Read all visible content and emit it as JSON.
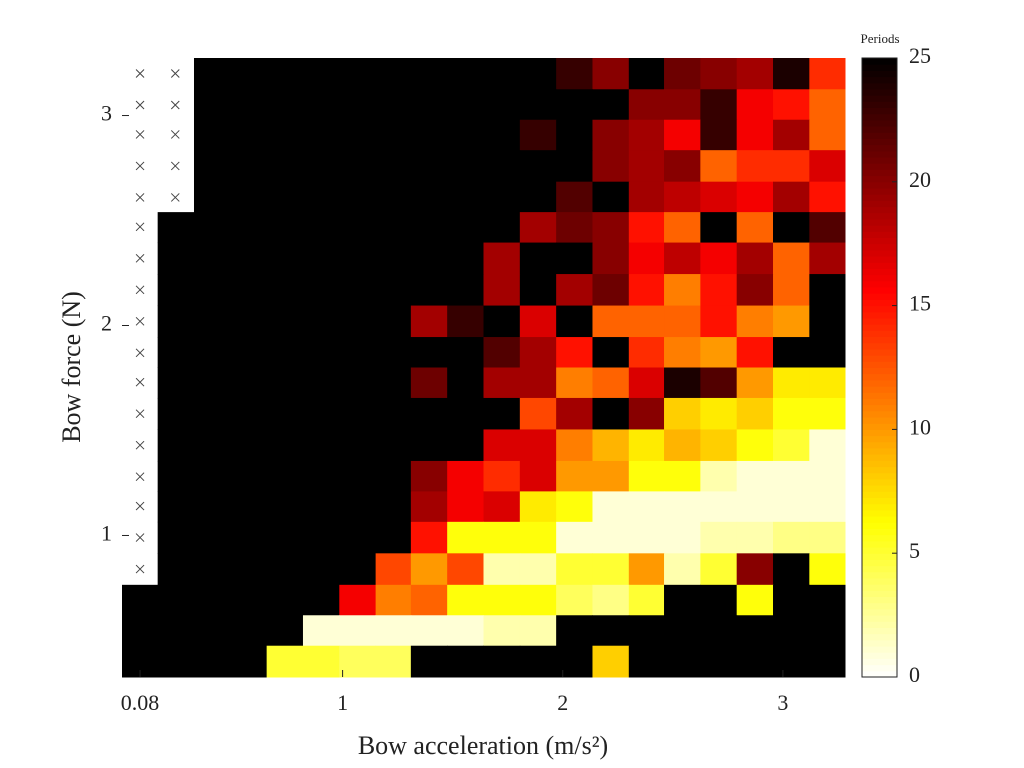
{
  "chart_data": {
    "type": "heatmap",
    "xlabel": "Bow acceleration (m/s²)",
    "ylabel": "Bow force (N)",
    "colorbar_title": "Periods",
    "colormap": "hot_r",
    "x": [
      0.08,
      0.24,
      0.41,
      0.57,
      0.74,
      0.9,
      1.07,
      1.23,
      1.39,
      1.56,
      1.72,
      1.89,
      2.05,
      2.22,
      2.38,
      2.54,
      2.71,
      2.87,
      3.04,
      3.2
    ],
    "y": [
      3.2,
      3.05,
      2.91,
      2.76,
      2.61,
      2.47,
      2.32,
      2.17,
      2.02,
      1.87,
      1.73,
      1.58,
      1.43,
      1.28,
      1.14,
      0.99,
      0.84,
      0.69,
      0.55,
      0.4
    ],
    "z": [
      [
        null,
        null,
        25,
        25,
        25,
        25,
        25,
        25,
        25,
        25,
        25,
        25,
        23,
        20,
        25,
        21,
        20,
        19,
        24,
        14
      ],
      [
        null,
        null,
        25,
        25,
        25,
        25,
        25,
        25,
        25,
        25,
        25,
        25,
        25,
        25,
        20,
        20,
        23,
        16,
        15,
        12
      ],
      [
        null,
        null,
        25,
        25,
        25,
        25,
        25,
        25,
        25,
        25,
        25,
        23,
        25,
        20,
        19,
        16,
        23,
        16,
        19,
        12
      ],
      [
        null,
        null,
        25,
        25,
        25,
        25,
        25,
        25,
        25,
        25,
        25,
        25,
        25,
        20,
        19,
        20,
        12,
        14,
        14,
        17
      ],
      [
        null,
        null,
        25,
        25,
        25,
        25,
        25,
        25,
        25,
        25,
        25,
        25,
        22,
        25,
        19,
        18,
        17,
        16,
        19,
        15
      ],
      [
        null,
        25,
        25,
        25,
        25,
        25,
        25,
        25,
        25,
        25,
        25,
        19,
        21,
        20,
        15,
        12,
        25,
        12,
        25,
        22
      ],
      [
        null,
        25,
        25,
        25,
        25,
        25,
        25,
        25,
        25,
        25,
        19,
        25,
        25,
        20,
        16,
        18,
        16,
        19,
        12,
        19
      ],
      [
        null,
        25,
        25,
        25,
        25,
        25,
        25,
        25,
        25,
        25,
        19,
        25,
        19,
        21,
        15,
        11,
        15,
        20,
        12,
        25
      ],
      [
        null,
        25,
        25,
        25,
        25,
        25,
        25,
        25,
        19,
        23,
        25,
        17,
        25,
        12,
        12,
        12,
        15,
        11,
        10,
        25
      ],
      [
        null,
        25,
        25,
        25,
        25,
        25,
        25,
        25,
        25,
        25,
        22,
        19,
        15,
        25,
        14,
        11,
        10,
        15,
        25,
        25
      ],
      [
        null,
        25,
        25,
        25,
        25,
        25,
        25,
        25,
        21,
        25,
        19,
        19,
        11,
        12,
        17,
        24,
        22,
        10,
        7,
        7
      ],
      [
        null,
        25,
        25,
        25,
        25,
        25,
        25,
        25,
        25,
        25,
        25,
        13,
        19,
        25,
        20,
        8,
        7,
        8,
        6,
        6
      ],
      [
        null,
        25,
        25,
        25,
        25,
        25,
        25,
        25,
        25,
        25,
        17,
        17,
        11,
        9,
        7,
        9,
        8,
        6,
        5,
        1
      ],
      [
        null,
        25,
        25,
        25,
        25,
        25,
        25,
        25,
        20,
        16,
        14,
        17,
        10,
        10,
        6,
        6,
        2,
        1,
        1,
        1
      ],
      [
        null,
        25,
        25,
        25,
        25,
        25,
        25,
        25,
        19,
        16,
        17,
        7,
        6,
        1,
        1,
        1,
        1,
        1,
        1,
        1
      ],
      [
        null,
        25,
        25,
        25,
        25,
        25,
        25,
        25,
        15,
        6,
        6,
        6,
        1,
        1,
        1,
        1,
        2,
        2,
        3,
        3
      ],
      [
        null,
        25,
        25,
        25,
        25,
        25,
        25,
        13,
        10,
        13,
        2,
        2,
        5,
        5,
        10,
        2,
        5,
        20,
        25,
        6
      ],
      [
        25,
        25,
        25,
        25,
        25,
        25,
        16,
        11,
        12,
        6,
        6,
        6,
        4,
        3,
        5,
        25,
        25,
        6,
        25,
        25
      ],
      [
        25,
        25,
        25,
        25,
        25,
        1,
        1,
        1,
        1,
        1,
        2,
        2,
        25,
        25,
        25,
        25,
        25,
        25,
        25,
        25
      ],
      [
        25,
        25,
        25,
        25,
        5,
        5,
        4,
        4,
        25,
        25,
        25,
        25,
        25,
        8,
        25,
        25,
        25,
        25,
        25,
        25
      ]
    ],
    "xlim": [
      -0.002,
      3.282
    ],
    "ylim": [
      0.326,
      3.274
    ],
    "xticks": [
      0.08,
      1,
      2,
      3
    ],
    "yticks": [
      1,
      2,
      3
    ],
    "clim": [
      0,
      25
    ],
    "cticks": [
      0,
      5,
      10,
      15,
      20,
      25
    ]
  }
}
